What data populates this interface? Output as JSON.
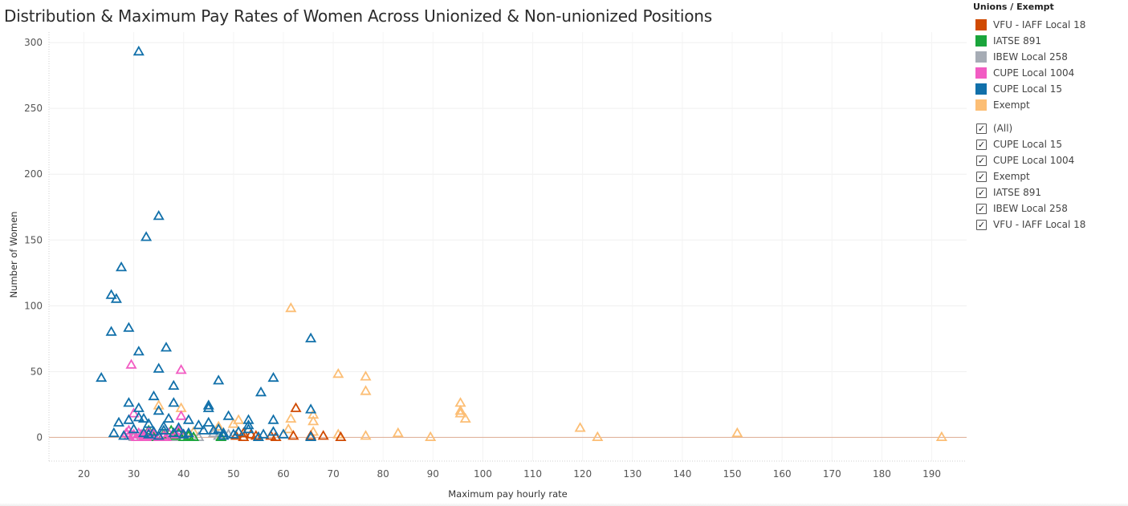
{
  "title": "Distribution & Maximum Pay Rates of Women Across Unionized & Non-unionized Positions",
  "legend": {
    "title": "Unions / Exempt",
    "items": [
      {
        "label": "VFU - IAFF Local 18",
        "color": "#d04a02"
      },
      {
        "label": "IATSE 891",
        "color": "#1aa53c"
      },
      {
        "label": "IBEW Local 258",
        "color": "#a6acb5"
      },
      {
        "label": "CUPE Local 1004",
        "color": "#f25cc3"
      },
      {
        "label": "CUPE Local 15",
        "color": "#1170aa"
      },
      {
        "label": "Exempt",
        "color": "#fcbe75"
      }
    ]
  },
  "filter": {
    "items": [
      "(All)",
      "CUPE Local 15",
      "CUPE Local 1004",
      "Exempt",
      "IATSE 891",
      "IBEW Local 258",
      "VFU - IAFF Local 18"
    ],
    "checked_icon": "checkmark-icon"
  },
  "chart_data": {
    "type": "scatter",
    "marker": "triangle-open",
    "xlabel": "Maximum pay hourly rate",
    "ylabel": "Number of Women",
    "xlim": [
      13,
      197
    ],
    "ylim": [
      -18,
      308
    ],
    "xticks": [
      20,
      30,
      40,
      50,
      60,
      70,
      80,
      90,
      100,
      110,
      120,
      130,
      140,
      150,
      160,
      170,
      180,
      190
    ],
    "yticks": [
      0,
      50,
      100,
      150,
      200,
      250,
      300
    ],
    "reference_line": {
      "y": 0,
      "color": "#e0b49e"
    },
    "series": [
      {
        "name": "CUPE Local 15",
        "color": "#1170aa",
        "points": [
          [
            31,
            293
          ],
          [
            35,
            168
          ],
          [
            32.5,
            152
          ],
          [
            27.5,
            129
          ],
          [
            25.5,
            108
          ],
          [
            26.5,
            105
          ],
          [
            25.5,
            80
          ],
          [
            29,
            83
          ],
          [
            36.5,
            68
          ],
          [
            31,
            65
          ],
          [
            65.5,
            75
          ],
          [
            23.5,
            45
          ],
          [
            35,
            52
          ],
          [
            47,
            43
          ],
          [
            58,
            45
          ],
          [
            38,
            39
          ],
          [
            34,
            31
          ],
          [
            55.5,
            34
          ],
          [
            29,
            26
          ],
          [
            38,
            26
          ],
          [
            45,
            24
          ],
          [
            45,
            22
          ],
          [
            31,
            22
          ],
          [
            27,
            11
          ],
          [
            29,
            13
          ],
          [
            32,
            14
          ],
          [
            35,
            20
          ],
          [
            37,
            14
          ],
          [
            49,
            16
          ],
          [
            58,
            13
          ],
          [
            65.5,
            21
          ],
          [
            53,
            13
          ],
          [
            41,
            13
          ],
          [
            31,
            15
          ],
          [
            26,
            3
          ],
          [
            33,
            10
          ],
          [
            36,
            8
          ],
          [
            39,
            7
          ],
          [
            43,
            9
          ],
          [
            45,
            11
          ],
          [
            46,
            5
          ],
          [
            48,
            3
          ],
          [
            51,
            4
          ],
          [
            53,
            6
          ],
          [
            56,
            2
          ],
          [
            58,
            4
          ],
          [
            30,
            6
          ],
          [
            32,
            3
          ],
          [
            34,
            4
          ],
          [
            36,
            5
          ],
          [
            38,
            3
          ],
          [
            40,
            2
          ],
          [
            44,
            5
          ],
          [
            47,
            6
          ],
          [
            50,
            2
          ],
          [
            53,
            9
          ],
          [
            60,
            2
          ],
          [
            65.5,
            0
          ],
          [
            28,
            1
          ],
          [
            33,
            2
          ],
          [
            35,
            1
          ],
          [
            41,
            3
          ],
          [
            48,
            1
          ],
          [
            55,
            0
          ]
        ]
      },
      {
        "name": "CUPE Local 1004",
        "color": "#f25cc3",
        "points": [
          [
            29.5,
            55
          ],
          [
            39.5,
            51
          ],
          [
            30,
            18
          ],
          [
            39.5,
            16
          ],
          [
            29,
            5
          ],
          [
            30,
            2
          ],
          [
            31,
            3
          ],
          [
            32,
            1
          ],
          [
            33,
            4
          ],
          [
            34,
            2
          ],
          [
            35,
            0
          ],
          [
            36,
            1
          ],
          [
            37,
            3
          ],
          [
            39,
            5
          ],
          [
            40,
            2
          ],
          [
            29,
            1
          ],
          [
            30.5,
            0
          ],
          [
            31.5,
            2
          ],
          [
            32.5,
            0
          ],
          [
            28.5,
            3
          ],
          [
            33.5,
            1
          ],
          [
            36.5,
            0
          ],
          [
            38.5,
            2
          ]
        ]
      },
      {
        "name": "Exempt",
        "color": "#fcbe75",
        "points": [
          [
            61.5,
            98
          ],
          [
            71,
            48
          ],
          [
            76.5,
            46
          ],
          [
            76.5,
            35
          ],
          [
            95.5,
            26
          ],
          [
            95.5,
            20
          ],
          [
            95.5,
            18
          ],
          [
            96.5,
            14
          ],
          [
            61.5,
            14
          ],
          [
            66,
            17
          ],
          [
            66,
            12
          ],
          [
            35,
            24
          ],
          [
            39.5,
            22
          ],
          [
            51,
            13
          ],
          [
            119.5,
            7
          ],
          [
            83,
            3
          ],
          [
            151,
            3
          ],
          [
            66,
            4
          ],
          [
            71,
            2
          ],
          [
            76.5,
            1
          ],
          [
            89.5,
            0
          ],
          [
            123,
            0
          ],
          [
            192,
            0
          ],
          [
            42,
            4
          ],
          [
            47,
            8
          ],
          [
            50,
            10
          ],
          [
            61,
            6
          ]
        ]
      },
      {
        "name": "IATSE 891",
        "color": "#1aa53c",
        "points": [
          [
            33,
            5
          ],
          [
            37.5,
            5
          ],
          [
            36,
            2
          ],
          [
            38,
            1
          ],
          [
            40,
            0
          ],
          [
            41,
            1
          ],
          [
            42,
            0
          ],
          [
            47.5,
            0
          ],
          [
            34,
            0
          ],
          [
            39,
            3
          ]
        ]
      },
      {
        "name": "IBEW Local 258",
        "color": "#a6acb5",
        "points": [
          [
            29,
            1
          ],
          [
            30,
            0
          ],
          [
            32,
            2
          ],
          [
            35,
            1
          ],
          [
            38,
            0
          ],
          [
            43,
            0
          ],
          [
            46,
            3
          ],
          [
            47,
            1
          ],
          [
            49,
            2
          ]
        ]
      },
      {
        "name": "VFU - IAFF Local 18",
        "color": "#d04a02",
        "points": [
          [
            62.5,
            22
          ],
          [
            50.5,
            1
          ],
          [
            52,
            0
          ],
          [
            53.5,
            2
          ],
          [
            54.5,
            1
          ],
          [
            57.5,
            1
          ],
          [
            58.5,
            0
          ],
          [
            62,
            1
          ],
          [
            65.5,
            1
          ],
          [
            68,
            1
          ],
          [
            71.5,
            0
          ],
          [
            52,
            3
          ]
        ]
      }
    ]
  }
}
